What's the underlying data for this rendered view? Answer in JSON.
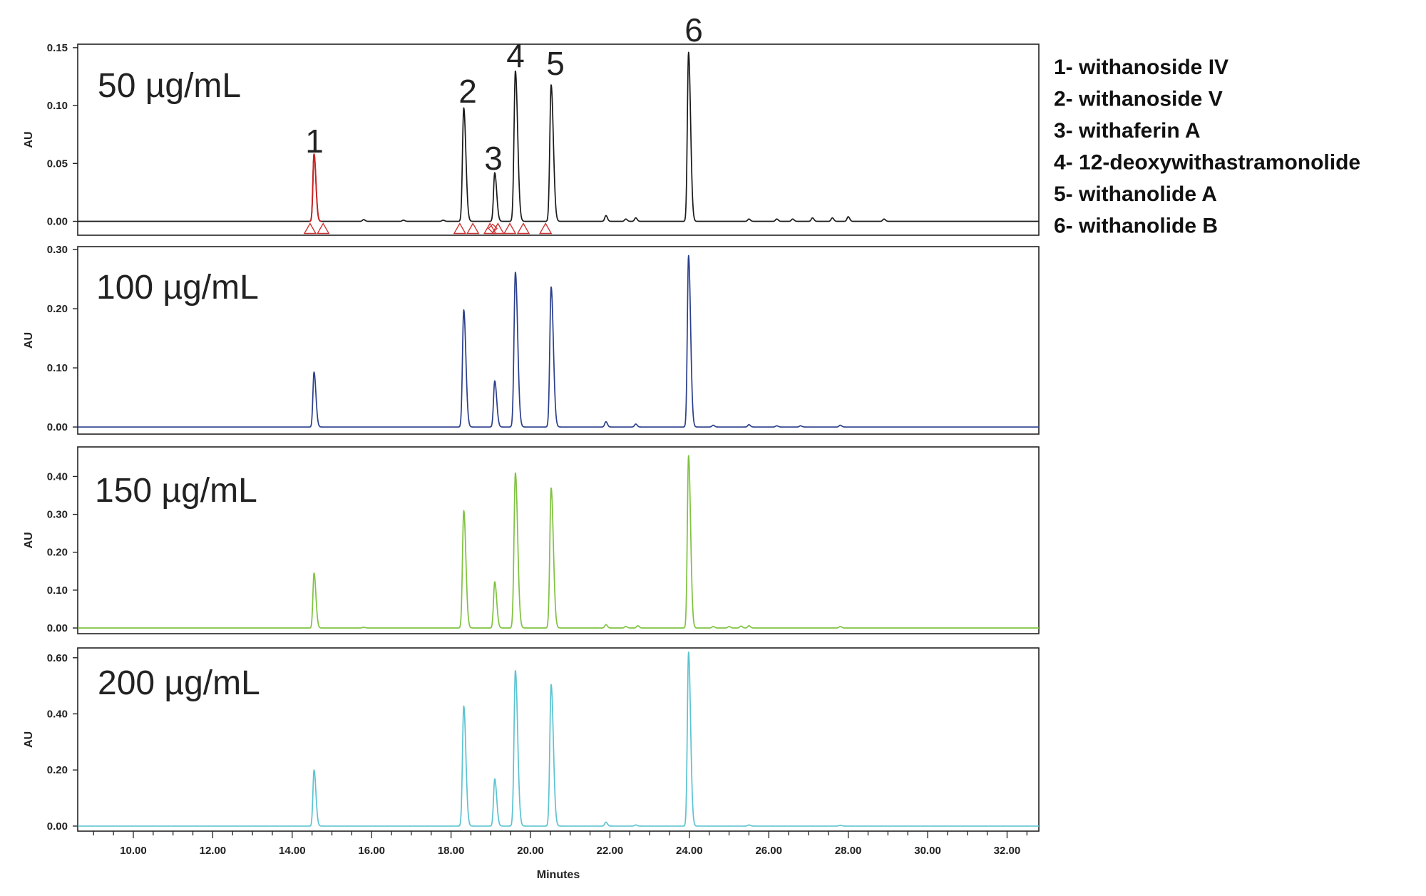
{
  "chart_data": {
    "type": "line",
    "x_axis": {
      "label": "Minutes",
      "range": [
        8.6,
        32.8
      ],
      "ticks": [
        10,
        12,
        14,
        16,
        18,
        20,
        22,
        24,
        26,
        28,
        30,
        32
      ],
      "tick_labels": [
        "10.00",
        "12.00",
        "14.00",
        "16.00",
        "18.00",
        "20.00",
        "22.00",
        "24.00",
        "26.00",
        "28.00",
        "30.00",
        "32.00"
      ]
    },
    "panels": [
      {
        "concentration": "50 µg/mL",
        "color": "#1a1a1a",
        "peak1_color": "#cc2222",
        "ylabel": "AU",
        "ylim": [
          -0.012,
          0.153
        ],
        "yticks": [
          0,
          0.05,
          0.1,
          0.15
        ],
        "ytick_labels": [
          "0.00",
          "0.05",
          "0.10",
          "0.15"
        ],
        "peak_heights": [
          0.058,
          0.098,
          0.042,
          0.13,
          0.118,
          0.146
        ],
        "minor_peaks": [
          [
            15.8,
            0.0015
          ],
          [
            16.8,
            0.001
          ],
          [
            17.8,
            0.001
          ],
          [
            21.9,
            0.005
          ],
          [
            22.4,
            0.002
          ],
          [
            22.65,
            0.003
          ],
          [
            25.5,
            0.002
          ],
          [
            26.2,
            0.002
          ],
          [
            26.6,
            0.002
          ],
          [
            27.1,
            0.003
          ],
          [
            27.6,
            0.003
          ],
          [
            28.0,
            0.004
          ],
          [
            28.9,
            0.002
          ]
        ],
        "baseline_markers": [
          14.45,
          14.78,
          18.22,
          18.55,
          18.98,
          19.18,
          19.48,
          19.82,
          20.38
        ]
      },
      {
        "concentration": "100 µg/mL",
        "color": "#2b3f8c",
        "ylabel": "AU",
        "ylim": [
          -0.012,
          0.305
        ],
        "yticks": [
          0,
          0.1,
          0.2,
          0.3
        ],
        "ytick_labels": [
          "0.00",
          "0.10",
          "0.20",
          "0.30"
        ],
        "peak_heights": [
          0.093,
          0.198,
          0.078,
          0.262,
          0.237,
          0.29
        ],
        "minor_peaks": [
          [
            21.9,
            0.009
          ],
          [
            22.65,
            0.005
          ],
          [
            24.6,
            0.003
          ],
          [
            25.5,
            0.004
          ],
          [
            26.2,
            0.002
          ],
          [
            26.8,
            0.002
          ],
          [
            27.8,
            0.003
          ]
        ]
      },
      {
        "concentration": "150 µg/mL",
        "color": "#7fc241",
        "ylabel": "AU",
        "ylim": [
          -0.015,
          0.478
        ],
        "yticks": [
          0,
          0.1,
          0.2,
          0.3,
          0.4
        ],
        "ytick_labels": [
          "0.00",
          "0.10",
          "0.20",
          "0.30",
          "0.40"
        ],
        "peak_heights": [
          0.145,
          0.31,
          0.122,
          0.41,
          0.37,
          0.455
        ],
        "minor_peaks": [
          [
            15.8,
            0.002
          ],
          [
            21.9,
            0.009
          ],
          [
            22.4,
            0.004
          ],
          [
            22.7,
            0.006
          ],
          [
            24.6,
            0.004
          ],
          [
            25.0,
            0.004
          ],
          [
            25.3,
            0.005
          ],
          [
            25.5,
            0.006
          ],
          [
            27.8,
            0.004
          ]
        ]
      },
      {
        "concentration": "200 µg/mL",
        "color": "#5cc3d1",
        "ylabel": "AU",
        "ylim": [
          -0.018,
          0.635
        ],
        "yticks": [
          0,
          0.2,
          0.4,
          0.6
        ],
        "ytick_labels": [
          "0.00",
          "0.20",
          "0.40",
          "0.60"
        ],
        "peak_heights": [
          0.2,
          0.428,
          0.168,
          0.555,
          0.505,
          0.62
        ],
        "minor_peaks": [
          [
            21.9,
            0.014
          ],
          [
            22.65,
            0.004
          ],
          [
            25.5,
            0.004
          ],
          [
            27.8,
            0.003
          ]
        ]
      }
    ],
    "peaks": [
      {
        "label": "1",
        "retention_time": 14.55
      },
      {
        "label": "2",
        "retention_time": 18.32
      },
      {
        "label": "3",
        "retention_time": 19.1
      },
      {
        "label": "4",
        "retention_time": 19.62
      },
      {
        "label": "5",
        "retention_time": 20.52
      },
      {
        "label": "6",
        "retention_time": 23.98
      }
    ],
    "legend": [
      "1- withanoside IV",
      "2- withanoside V",
      "3- withaferin A",
      "4- 12-deoxywithastramonolide",
      "5- withanolide A",
      "6- withanolide B"
    ]
  }
}
